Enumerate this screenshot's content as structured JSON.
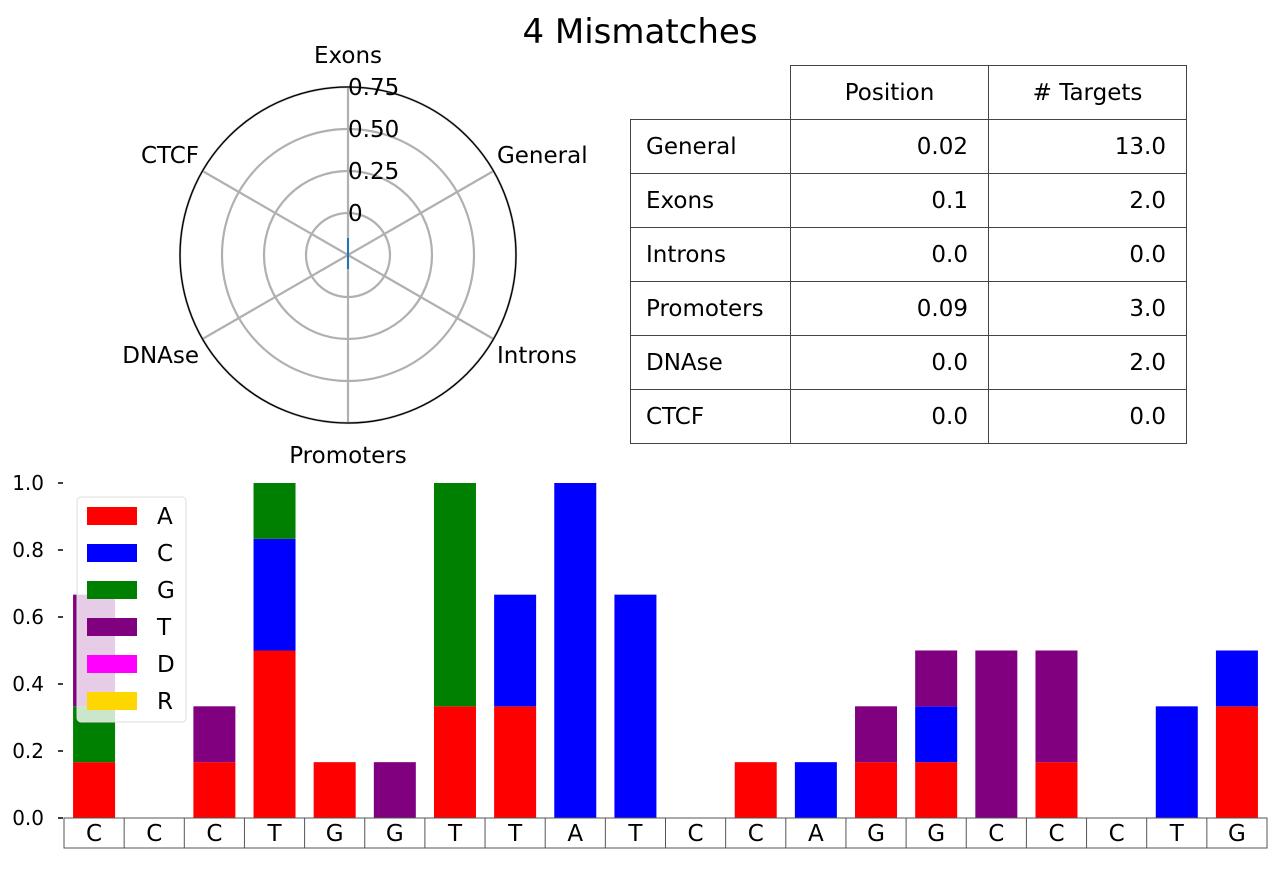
{
  "title": "4 Mismatches",
  "radar": {
    "axes": [
      "Exons",
      "General",
      "Introns",
      "Promoters",
      "DNAse",
      "CTCF"
    ],
    "rticks": [
      "0",
      "0.25",
      "0.50",
      "0.75"
    ],
    "rtick_values": [
      0,
      0.25,
      0.5,
      0.75
    ],
    "rlim": [
      -0.25,
      0.75
    ],
    "series_color": "#1f77b4"
  },
  "table": {
    "columns": [
      "Position",
      "# Targets"
    ],
    "rows": [
      {
        "label": "General",
        "position": "0.02",
        "targets": "13.0"
      },
      {
        "label": "Exons",
        "position": "0.1",
        "targets": "2.0"
      },
      {
        "label": "Introns",
        "position": "0.0",
        "targets": "0.0"
      },
      {
        "label": "Promoters",
        "position": "0.09",
        "targets": "3.0"
      },
      {
        "label": "DNAse",
        "position": "0.0",
        "targets": "2.0"
      },
      {
        "label": "CTCF",
        "position": "0.0",
        "targets": "0.0"
      }
    ]
  },
  "chart_data": {
    "type": "bar",
    "stacked": true,
    "categories": [
      "C",
      "C",
      "C",
      "T",
      "G",
      "G",
      "T",
      "T",
      "A",
      "T",
      "C",
      "C",
      "A",
      "G",
      "G",
      "C",
      "C",
      "C",
      "T",
      "G"
    ],
    "ylim": [
      0,
      1.0
    ],
    "yticks": [
      "0.0",
      "0.2",
      "0.4",
      "0.6",
      "0.8",
      "1.0"
    ],
    "ytick_values": [
      0,
      0.2,
      0.4,
      0.6,
      0.8,
      1.0
    ],
    "legend_position": "top-left",
    "series": [
      {
        "name": "A",
        "color": "#ff0000",
        "values": [
          0.1667,
          0,
          0.1667,
          0.5,
          0.1667,
          0,
          0.3333,
          0.3333,
          0,
          0,
          0,
          0.1667,
          0,
          0.1667,
          0.1667,
          0,
          0.1667,
          0,
          0,
          0.3333
        ]
      },
      {
        "name": "C",
        "color": "#0000ff",
        "values": [
          0,
          0,
          0,
          0.3333,
          0,
          0,
          0,
          0.3333,
          1.0,
          0.6667,
          0,
          0,
          0.1667,
          0,
          0.1667,
          0,
          0,
          0,
          0.3333,
          0.1667
        ]
      },
      {
        "name": "G",
        "color": "#008000",
        "values": [
          0.1667,
          0,
          0,
          0.1667,
          0,
          0,
          0.6667,
          0,
          0,
          0,
          0,
          0,
          0,
          0,
          0,
          0,
          0,
          0,
          0,
          0
        ]
      },
      {
        "name": "T",
        "color": "#800080",
        "values": [
          0.3333,
          0,
          0.1667,
          0,
          0,
          0.1667,
          0,
          0,
          0,
          0,
          0,
          0,
          0,
          0.1667,
          0.1667,
          0.5,
          0.3333,
          0,
          0,
          0
        ]
      },
      {
        "name": "D",
        "color": "#ff00ff",
        "values": [
          0,
          0,
          0,
          0,
          0,
          0,
          0,
          0,
          0,
          0,
          0,
          0,
          0,
          0,
          0,
          0,
          0,
          0,
          0,
          0
        ]
      },
      {
        "name": "R",
        "color": "#ffd700",
        "values": [
          0,
          0,
          0,
          0,
          0,
          0,
          0,
          0,
          0,
          0,
          0,
          0,
          0,
          0,
          0,
          0,
          0,
          0,
          0,
          0
        ]
      }
    ]
  }
}
